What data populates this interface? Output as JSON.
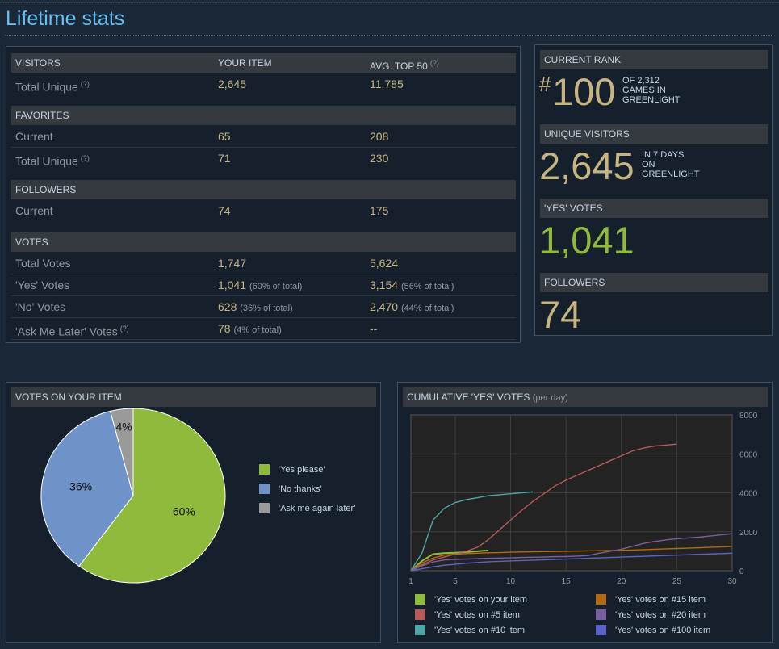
{
  "page": {
    "title": "Lifetime stats"
  },
  "table": {
    "columns": {
      "your_item": "YOUR ITEM",
      "avg_top": "AVG. TOP 50",
      "avg_top_help": "(?)"
    },
    "visitors": {
      "header": "VISITORS",
      "rows": [
        {
          "label": "Total Unique",
          "help": "(?)",
          "your": "2,645",
          "avg": "11,785"
        }
      ]
    },
    "favorites": {
      "header": "FAVORITES",
      "rows": [
        {
          "label": "Current",
          "your": "65",
          "avg": "208"
        },
        {
          "label": "Total Unique",
          "help": "(?)",
          "your": "71",
          "avg": "230"
        }
      ]
    },
    "followers": {
      "header": "FOLLOWERS",
      "rows": [
        {
          "label": "Current",
          "your": "74",
          "avg": "175"
        }
      ]
    },
    "votes": {
      "header": "VOTES",
      "rows": [
        {
          "label": "Total Votes",
          "your": "1,747",
          "avg": "5,624"
        },
        {
          "label": "'Yes' Votes",
          "your": "1,041",
          "your_note": "(60% of total)",
          "avg": "3,154",
          "avg_note": "(56% of total)"
        },
        {
          "label": "'No' Votes",
          "your": "628",
          "your_note": "(36% of total)",
          "avg": "2,470",
          "avg_note": "(44% of total)"
        },
        {
          "label": "'Ask Me Later' Votes",
          "help": "(?)",
          "your": "78",
          "your_note": "(4% of total)",
          "avg": "--"
        }
      ]
    }
  },
  "summary": {
    "rank": {
      "header": "CURRENT RANK",
      "hash": "#",
      "value": "100",
      "desc1": "OF 2,312",
      "desc2": "GAMES IN",
      "desc3": "GREENLIGHT"
    },
    "visitors": {
      "header": "UNIQUE VISITORS",
      "value": "2,645",
      "desc1": "IN 7 DAYS",
      "desc2": "ON",
      "desc3": "GREENLIGHT"
    },
    "yes": {
      "header": "'YES' VOTES",
      "value": "1,041"
    },
    "followers": {
      "header": "FOLLOWERS",
      "value": "74"
    }
  },
  "pie": {
    "header": "VOTES ON YOUR ITEM",
    "colors": {
      "yes": "#90ba3c",
      "no": "#6f93c8",
      "later": "#9a9a9a"
    }
  },
  "line": {
    "header": "CUMULATIVE 'YES' VOTES",
    "header_sub": "(per day)",
    "colors": {
      "your": "#8fbc3c",
      "n5": "#b65a5a",
      "n10": "#4fa6a6",
      "n15": "#b46a10",
      "n20": "#7a5fa0",
      "n100": "#5a64c8"
    }
  },
  "chart_data": [
    {
      "type": "pie",
      "slices": [
        {
          "label": "'Yes please'",
          "value": 60,
          "text": "60%"
        },
        {
          "label": "'No thanks'",
          "value": 36,
          "text": "36%"
        },
        {
          "label": "'Ask me again later'",
          "value": 4,
          "text": "4%"
        }
      ],
      "legend": "right"
    },
    {
      "type": "line",
      "xlim": [
        1,
        30
      ],
      "ylim": [
        0,
        8000
      ],
      "xticks": [
        1,
        5,
        10,
        15,
        20,
        25,
        30
      ],
      "yticks": [
        0,
        2000,
        4000,
        6000,
        8000
      ],
      "grid": true,
      "legend": "bottom",
      "series": [
        {
          "name": "'Yes' votes on your item",
          "x": [
            1,
            2,
            3,
            4,
            5,
            6,
            7,
            8
          ],
          "y": [
            0,
            500,
            850,
            900,
            920,
            960,
            1000,
            1041
          ]
        },
        {
          "name": "'Yes' votes on #5 item",
          "x": [
            1,
            2,
            3,
            4,
            5,
            6,
            7,
            8,
            9,
            10,
            11,
            12,
            13,
            14,
            15,
            16,
            17,
            18,
            19,
            20,
            21,
            22,
            23,
            24,
            25
          ],
          "y": [
            0,
            300,
            550,
            700,
            850,
            1000,
            1200,
            1600,
            2100,
            2600,
            3100,
            3550,
            3950,
            4350,
            4650,
            4900,
            5150,
            5400,
            5650,
            5900,
            6150,
            6300,
            6400,
            6450,
            6500
          ]
        },
        {
          "name": "'Yes' votes on #10 item",
          "x": [
            1,
            2,
            3,
            4,
            5,
            6,
            7,
            8,
            9,
            10,
            11,
            12
          ],
          "y": [
            0,
            900,
            2600,
            3200,
            3500,
            3650,
            3750,
            3850,
            3900,
            3950,
            4000,
            4050
          ]
        },
        {
          "name": "'Yes' votes on #15 item",
          "x": [
            1,
            2,
            3,
            4,
            5,
            6,
            7,
            8,
            9,
            10,
            11,
            12,
            13,
            14,
            15,
            16,
            17,
            18,
            19,
            20,
            21,
            22,
            23,
            24,
            25,
            26,
            27,
            28,
            29,
            30
          ],
          "y": [
            0,
            400,
            650,
            800,
            850,
            880,
            900,
            920,
            930,
            950,
            960,
            970,
            980,
            990,
            1000,
            1010,
            1020,
            1030,
            1040,
            1050,
            1060,
            1080,
            1100,
            1120,
            1140,
            1160,
            1180,
            1200,
            1220,
            1250
          ]
        },
        {
          "name": "'Yes' votes on #20 item",
          "x": [
            1,
            2,
            3,
            4,
            5,
            6,
            7,
            8,
            9,
            10,
            11,
            12,
            13,
            14,
            15,
            16,
            17,
            18,
            19,
            20,
            21,
            22,
            23,
            24,
            25,
            26,
            27,
            28,
            29,
            30
          ],
          "y": [
            0,
            250,
            450,
            550,
            580,
            600,
            620,
            640,
            650,
            660,
            680,
            690,
            700,
            720,
            730,
            750,
            780,
            900,
            1000,
            1100,
            1250,
            1400,
            1500,
            1580,
            1640,
            1680,
            1720,
            1780,
            1840,
            1900
          ]
        },
        {
          "name": "'Yes' votes on #100 item",
          "x": [
            1,
            2,
            3,
            4,
            5,
            6,
            7,
            8,
            9,
            10,
            11,
            12,
            13,
            14,
            15,
            16,
            17,
            18,
            19,
            20,
            21,
            22,
            23,
            24,
            25,
            26,
            27,
            28,
            29,
            30
          ],
          "y": [
            0,
            100,
            200,
            280,
            330,
            380,
            420,
            460,
            480,
            500,
            520,
            540,
            560,
            580,
            600,
            620,
            640,
            660,
            680,
            700,
            720,
            740,
            760,
            780,
            800,
            820,
            840,
            860,
            880,
            900
          ]
        }
      ]
    }
  ]
}
